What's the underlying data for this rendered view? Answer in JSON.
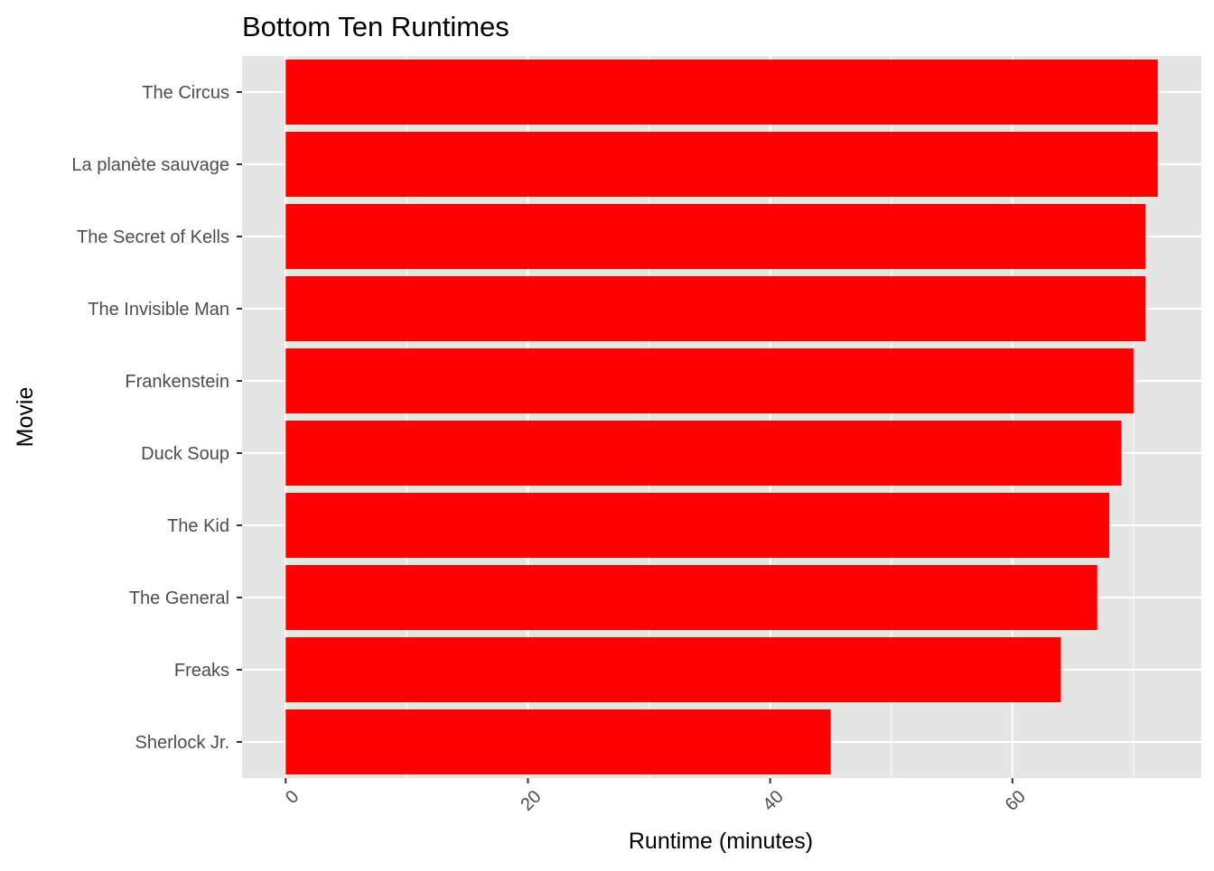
{
  "chart_data": {
    "type": "bar",
    "orientation": "horizontal",
    "title": "Bottom Ten Runtimes",
    "xlabel": "Runtime (minutes)",
    "ylabel": "Movie",
    "categories": [
      "Sherlock Jr.",
      "Freaks",
      "The General",
      "The Kid",
      "Duck Soup",
      "Frankenstein",
      "The Invisible Man",
      "The Secret of Kells",
      "La planète sauvage",
      "The Circus"
    ],
    "values": [
      45,
      64,
      67,
      68,
      69,
      70,
      71,
      71,
      72,
      72
    ],
    "xlim": [
      -3.6,
      75.6
    ],
    "x_ticks": [
      0,
      20,
      40,
      60
    ],
    "x_tick_labels": [
      "0",
      "20",
      "40",
      "60"
    ],
    "x_tick_rotation": "45 degrees",
    "grid": true,
    "bar_color": "#ff0000",
    "panel_background": "#e5e5e5",
    "grid_color": "#ffffff",
    "legend": "none"
  }
}
